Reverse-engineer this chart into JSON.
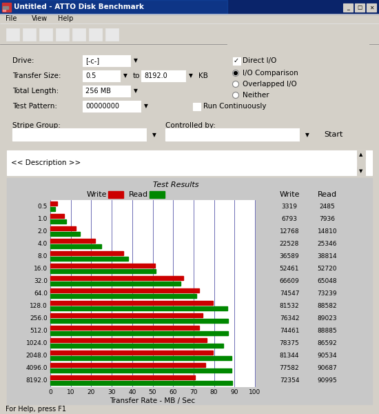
{
  "title": "Untitled - ATTO Disk Benchmark",
  "categories": [
    "0.5",
    "1.0",
    "2.0",
    "4.0",
    "8.0",
    "16.0",
    "32.0",
    "64.0",
    "128.0",
    "256.0",
    "512.0",
    "1024.0",
    "2048.0",
    "4096.0",
    "8192.0"
  ],
  "write_values": [
    3319,
    6793,
    12768,
    22528,
    36589,
    52461,
    66609,
    74547,
    81532,
    76342,
    74461,
    78375,
    81344,
    77582,
    72354
  ],
  "read_values": [
    2485,
    7936,
    14810,
    25346,
    38814,
    52720,
    65048,
    73239,
    88582,
    89023,
    88885,
    86592,
    90534,
    90687,
    90995
  ],
  "write_color": "#cc0000",
  "read_color": "#008800",
  "panel_bg": "#d4d0c8",
  "chart_bg": "#c8c8c8",
  "title_bg": "#0a246a",
  "axis_max": 100,
  "scale_factor": 1024,
  "xlabel": "Transfer Rate - MB / Sec",
  "grid_vals": [
    0,
    10,
    20,
    30,
    40,
    50,
    60,
    70,
    80,
    90,
    100
  ]
}
